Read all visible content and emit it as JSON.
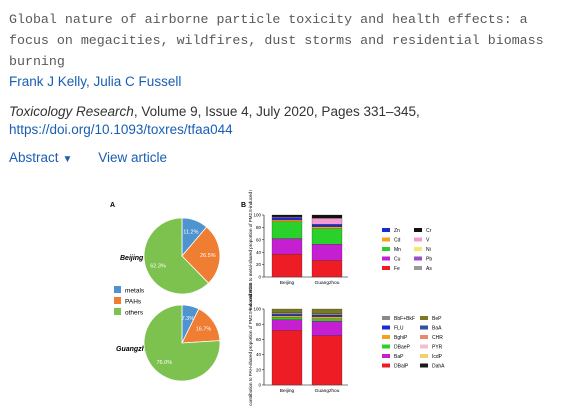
{
  "article": {
    "title": "Global nature of airborne particle toxicity and health effects: a focus on megacities, wildfires, dust storms and residential biomass burning",
    "authors": [
      "Frank J Kelly",
      "Julia C Fussell"
    ],
    "author_sep": ", ",
    "journal": "Toxicology Research",
    "details": ", Volume 9, Issue 4, July 2020, Pages 331–345,",
    "doi": "https://doi.org/10.1093/toxres/tfaa044"
  },
  "actions": {
    "abstract": "Abstract",
    "view_article": "View article"
  },
  "colors": {
    "link": "#1a5eb4",
    "metals": "#4f93cf",
    "pahs": "#ef7d32",
    "others": "#7dc24e"
  },
  "figure": {
    "panel_a": "A",
    "panel_b": "B",
    "legend_a": [
      "metals",
      "PAHs",
      "others"
    ],
    "ylabel_top": "% contribution to metal-shared proportion of PM2.5-induced ROS",
    "ylabel_bottom": "% contribution to PAH-shared proportion of PM2.5-induced ROS",
    "legend_top": [
      "Zn",
      "Cr",
      "Cd",
      "V",
      "Mn",
      "Ni",
      "Cu",
      "Pb",
      "Fe",
      "As"
    ],
    "legend_bottom": [
      "BbF+BkF",
      "BeP",
      "FLU",
      "BaA",
      "BghiP",
      "CHR",
      "DBaeP",
      "PYR",
      "BaP",
      "IcdP",
      "DBalP",
      "DahA"
    ]
  },
  "chart_data": [
    {
      "type": "pie",
      "title": "Beijing",
      "labels": [
        "metals",
        "PAHs",
        "others"
      ],
      "values": [
        11.2,
        26.5,
        62.3
      ],
      "colors": [
        "#4f93cf",
        "#ef7d32",
        "#7dc24e"
      ]
    },
    {
      "type": "pie",
      "title": "Guangzhou",
      "labels": [
        "metals",
        "PAHs",
        "others"
      ],
      "values": [
        7.3,
        16.7,
        76.0
      ],
      "colors": [
        "#4f93cf",
        "#ef7d32",
        "#7dc24e"
      ]
    },
    {
      "type": "bar",
      "stacked": true,
      "categories": [
        "Beijing",
        "Guangzhou"
      ],
      "ylim": [
        0,
        100
      ],
      "series": [
        {
          "name": "Fe",
          "color": "#ee1c25",
          "values": [
            37,
            27
          ]
        },
        {
          "name": "Cu",
          "color": "#c41fd1",
          "values": [
            25,
            26
          ]
        },
        {
          "name": "Mn",
          "color": "#2ad12a",
          "values": [
            27,
            25
          ]
        },
        {
          "name": "Cd",
          "color": "#f4a21c",
          "values": [
            3,
            3
          ]
        },
        {
          "name": "Zn",
          "color": "#1b2bd0",
          "values": [
            4,
            4
          ]
        },
        {
          "name": "V",
          "color": "#f29bd0",
          "values": [
            1,
            10
          ]
        },
        {
          "name": "Cr",
          "color": "#111111",
          "values": [
            3,
            5
          ]
        }
      ]
    },
    {
      "type": "bar",
      "stacked": true,
      "categories": [
        "Beijing",
        "Guangzhou"
      ],
      "ylim": [
        0,
        100
      ],
      "series": [
        {
          "name": "DBalP",
          "color": "#ee1c25",
          "values": [
            72,
            65
          ]
        },
        {
          "name": "BaP",
          "color": "#c41fd1",
          "values": [
            14,
            19
          ]
        },
        {
          "name": "DBaeP",
          "color": "#2ad12a",
          "values": [
            3,
            3
          ]
        },
        {
          "name": "BghiP",
          "color": "#f4a21c",
          "values": [
            2,
            3
          ]
        },
        {
          "name": "FLU",
          "color": "#1b2bd0",
          "values": [
            2,
            2
          ]
        },
        {
          "name": "BbF+BkF",
          "color": "#8a8a8a",
          "values": [
            2,
            2
          ]
        },
        {
          "name": "BeP",
          "color": "#7a7a20",
          "values": [
            5,
            6
          ]
        }
      ]
    }
  ]
}
